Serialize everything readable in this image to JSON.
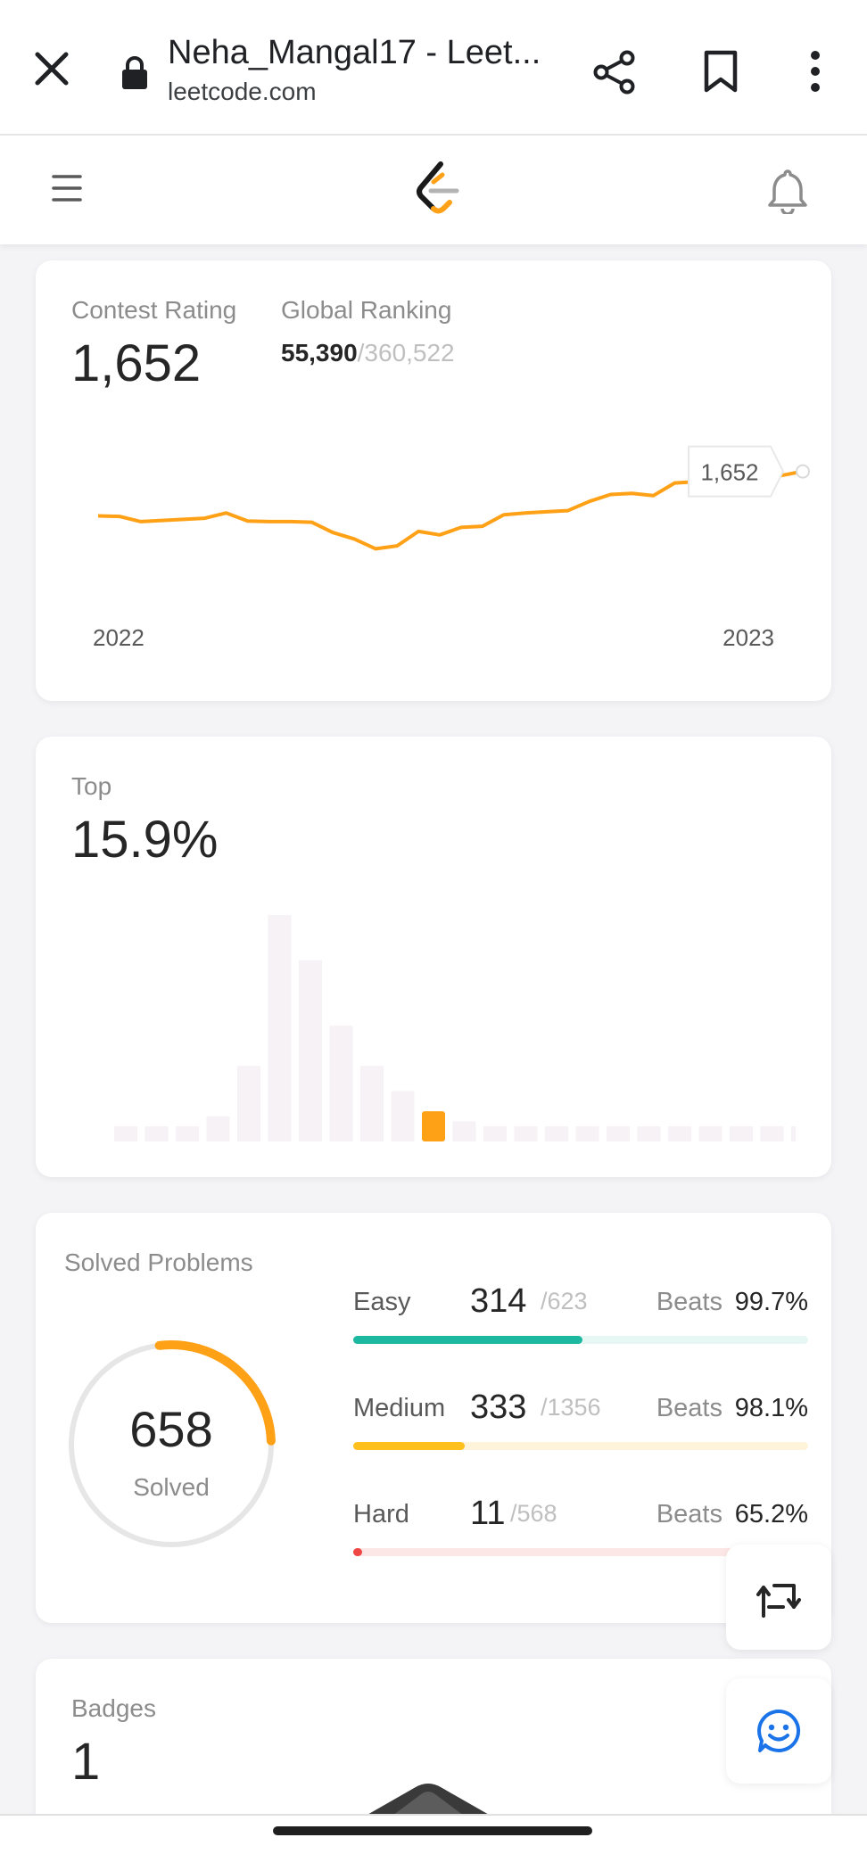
{
  "browser": {
    "title": "Neha_Mangal17 - Leet...",
    "url": "leetcode.com"
  },
  "colors": {
    "accent": "#ffa116",
    "easy": "#1cb8a0",
    "medium": "#ffc01e",
    "hard": "#ef4743",
    "chat": "#1a73e8"
  },
  "contest": {
    "rating_label": "Contest Rating",
    "rating_value": "1,652",
    "ranking_label": "Global Ranking",
    "ranking_value": "55,390",
    "ranking_total": "/360,522",
    "tooltip": "1,652",
    "year_start": "2022",
    "year_end": "2023"
  },
  "top": {
    "label": "Top",
    "value": "15.9%"
  },
  "solved": {
    "label": "Solved Problems",
    "count": "658",
    "sub": "Solved",
    "progress_fraction": 0.263,
    "rows": [
      {
        "name": "Easy",
        "solved": "314",
        "total": "/623",
        "beats_label": "Beats",
        "beats": "99.7%",
        "fraction": 0.504
      },
      {
        "name": "Medium",
        "solved": "333",
        "total": "/1356",
        "beats_label": "Beats",
        "beats": "98.1%",
        "fraction": 0.246
      },
      {
        "name": "Hard",
        "solved": "11",
        "total": "/568",
        "beats_label": "Beats",
        "beats": "65.2%",
        "fraction": 0.019
      }
    ]
  },
  "badges": {
    "label": "Badges",
    "value": "1"
  },
  "chart_data": [
    {
      "type": "line",
      "x": [
        "2022",
        "",
        "",
        "",
        "",
        "",
        "",
        "",
        "",
        "",
        "",
        "",
        "",
        "",
        "",
        "",
        "",
        "",
        "",
        "",
        "",
        "",
        "",
        "",
        "",
        "",
        "",
        "",
        "",
        "",
        "",
        "",
        "",
        "2023"
      ],
      "series": [
        {
          "values": [
            1575,
            1574,
            1565,
            1567,
            1569,
            1571,
            1580,
            1566,
            1565,
            1565,
            1564,
            1546,
            1535,
            1518,
            1523,
            1548,
            1542,
            1555,
            1557,
            1577,
            1580,
            1582,
            1584,
            1600,
            1612,
            1614,
            1610,
            1632,
            1634,
            1637,
            1640,
            1630,
            1645,
            1652
          ]
        }
      ],
      "highlight_value": 1652
    },
    {
      "type": "bar",
      "values": [
        3,
        3,
        3,
        5,
        15,
        45,
        36,
        23,
        15,
        10,
        6,
        4,
        3,
        3,
        3,
        3,
        3,
        3,
        3,
        3,
        3,
        3,
        3,
        3
      ],
      "highlight_index": 10
    }
  ]
}
